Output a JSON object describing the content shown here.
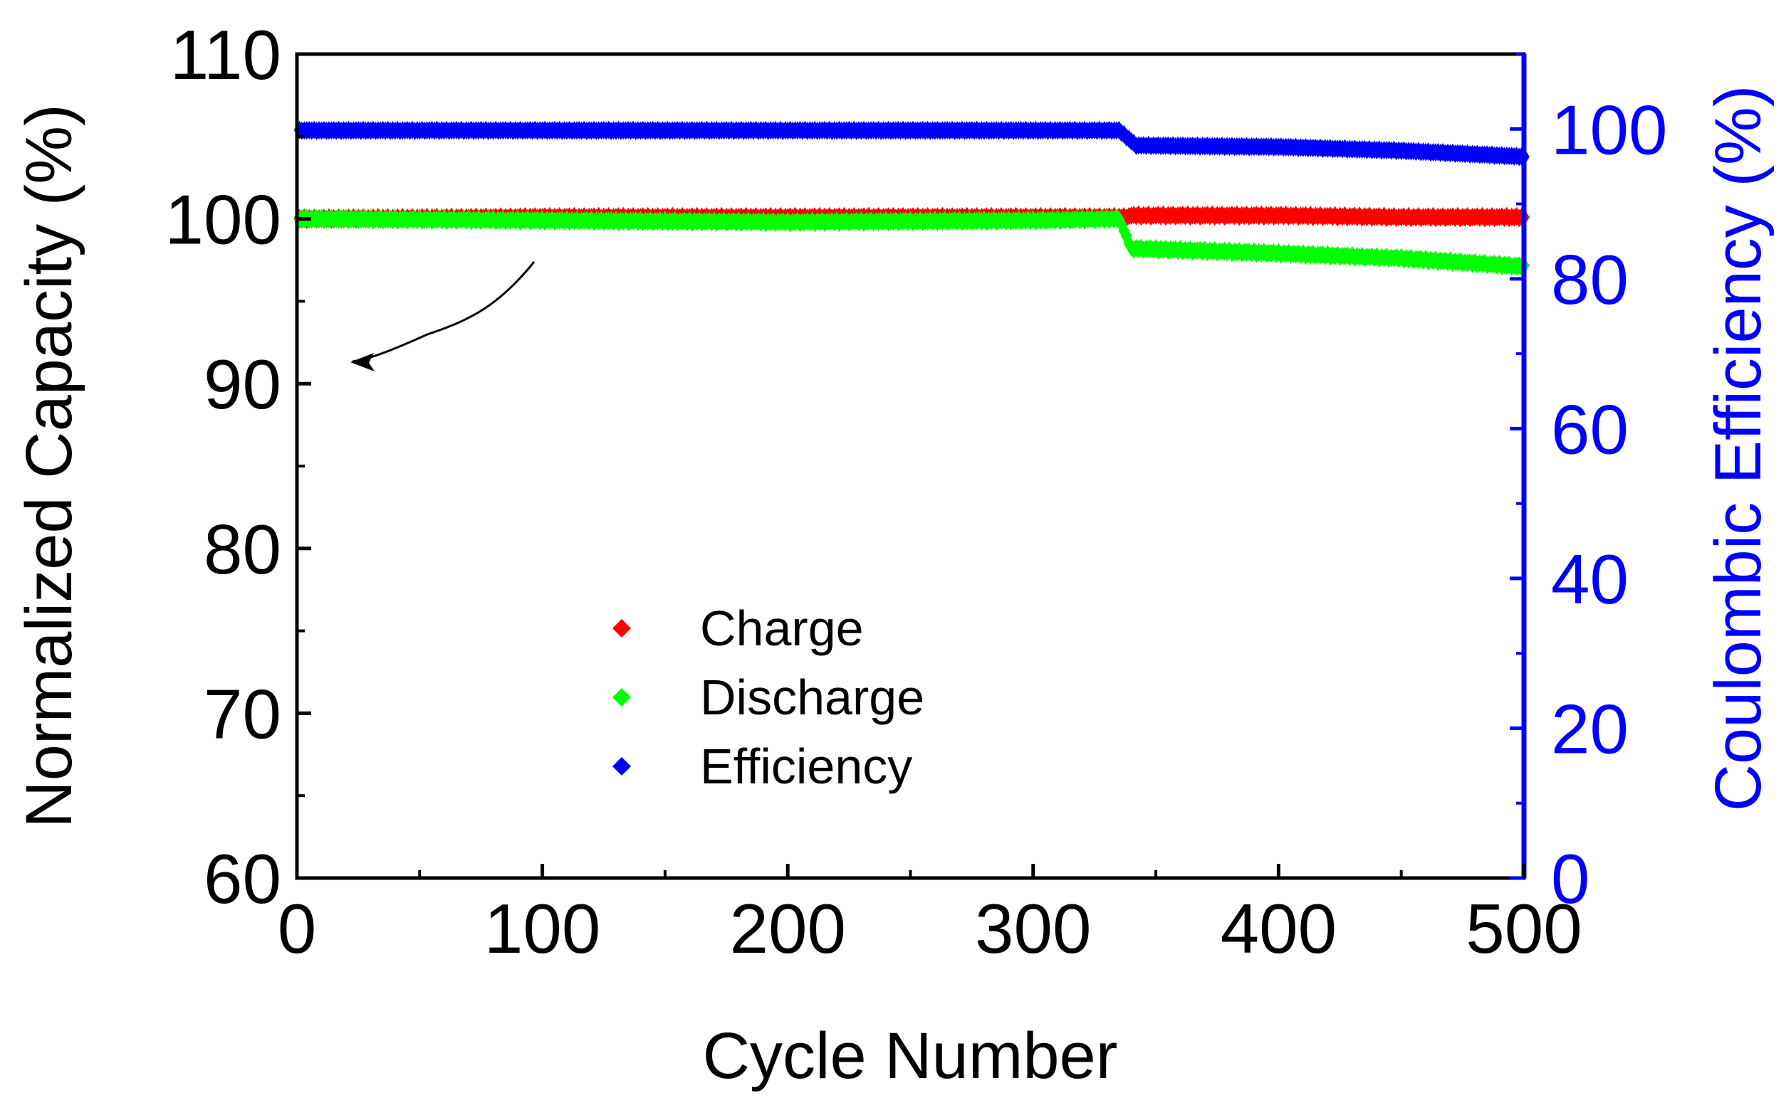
{
  "chart_data": {
    "type": "scatter",
    "title": "",
    "xlabel": "Cycle Number",
    "ylabel": "Normalized Capacity (%)",
    "y2label": "Coulombic Efficiency (%)",
    "xlim": [
      0,
      500
    ],
    "ylim": [
      60,
      110
    ],
    "y2lim": [
      0,
      110
    ],
    "x_ticks": [
      "0",
      "100",
      "200",
      "300",
      "400",
      "500"
    ],
    "y_ticks": [
      "60",
      "70",
      "80",
      "90",
      "100",
      "110"
    ],
    "y2_ticks": [
      "0",
      "20",
      "40",
      "60",
      "80",
      "100"
    ],
    "grid": false,
    "legend_position": "lower-center",
    "axis_colors": {
      "left": "#000000",
      "right": "#0000ff"
    },
    "series": [
      {
        "name": "Charge",
        "axis": "left",
        "color": "#ff0000",
        "x": [
          0,
          100,
          200,
          300,
          338,
          340,
          400,
          450,
          500
        ],
        "y": [
          100,
          100.1,
          100.1,
          100.1,
          100.1,
          100.2,
          100.2,
          100.1,
          100.1
        ]
      },
      {
        "name": "Discharge",
        "axis": "left",
        "color": "#00ff00",
        "x": [
          0,
          100,
          200,
          300,
          335,
          340,
          400,
          450,
          500
        ],
        "y": [
          100,
          99.9,
          99.8,
          99.9,
          100,
          98.2,
          97.9,
          97.6,
          97.1
        ]
      },
      {
        "name": "Efficiency",
        "axis": "right",
        "color": "#0000ff",
        "x": [
          0,
          100,
          200,
          300,
          335,
          342,
          400,
          450,
          500
        ],
        "y": [
          99.8,
          99.8,
          99.8,
          99.8,
          99.8,
          97.8,
          97.6,
          97.1,
          96.3
        ]
      }
    ]
  }
}
